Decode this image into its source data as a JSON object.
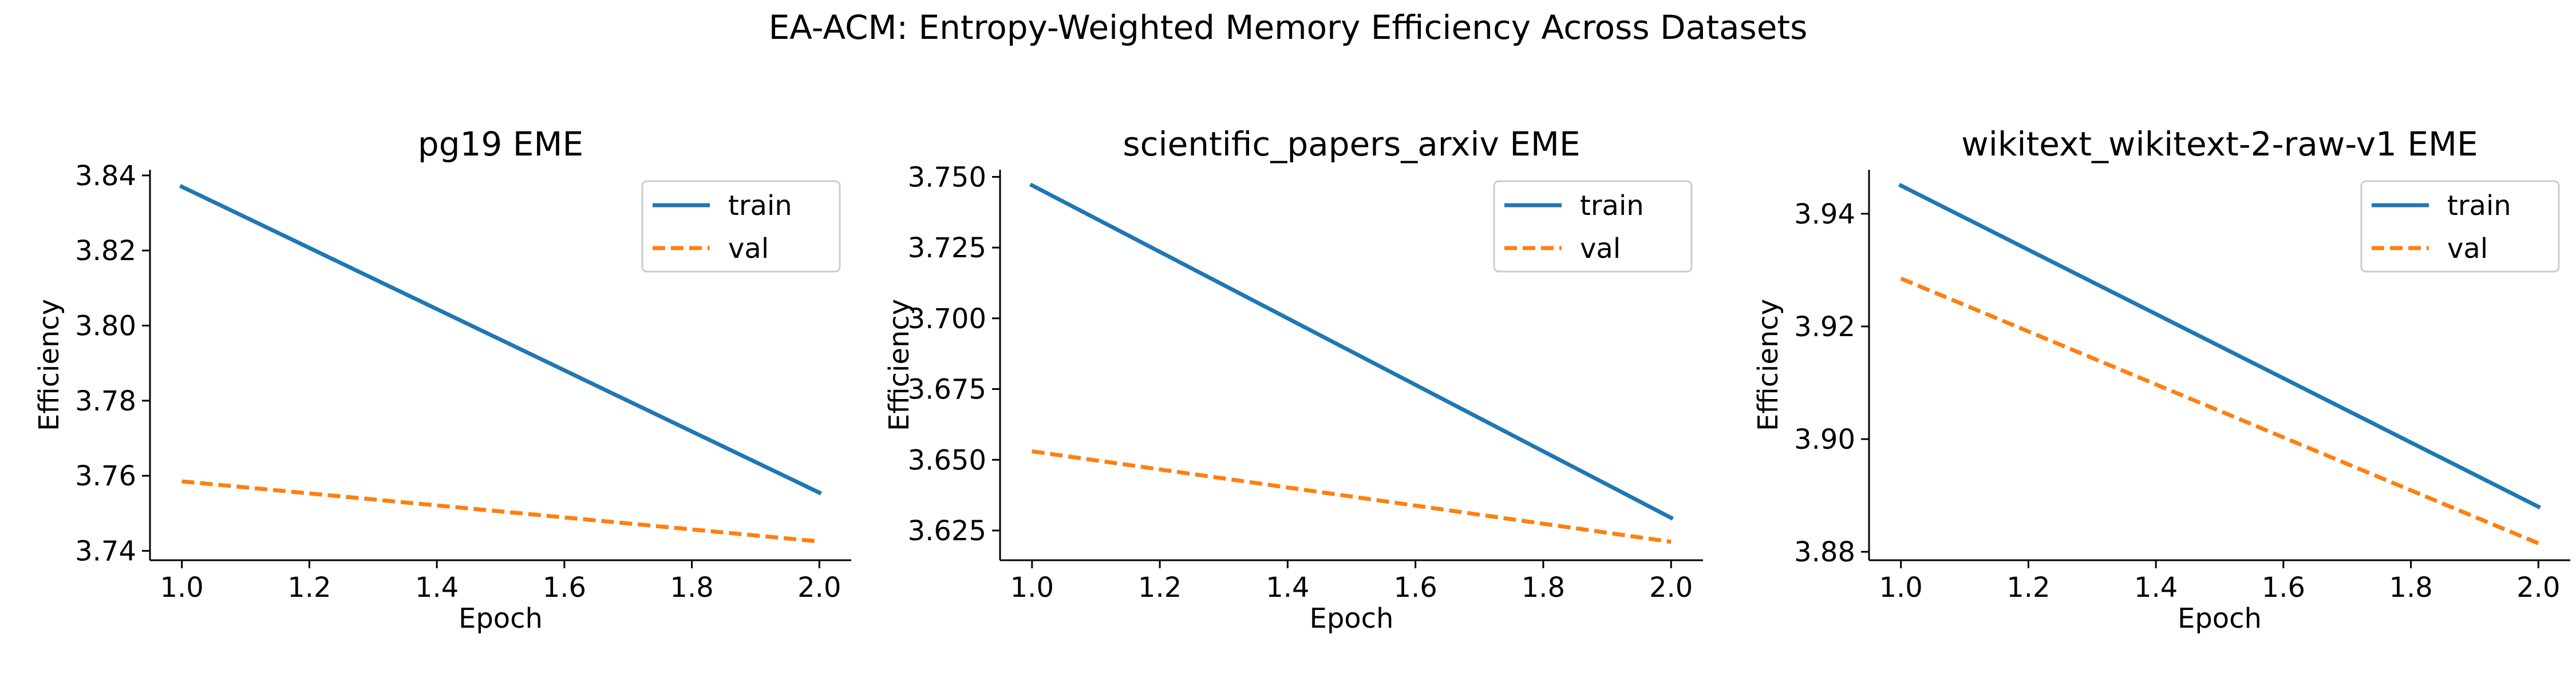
{
  "figure": {
    "suptitle": "EA-ACM: Entropy-Weighted Memory Efficiency Across Datasets"
  },
  "chart_data": [
    {
      "type": "line",
      "title": "pg19 EME",
      "xlabel": "Epoch",
      "ylabel": "Efficiency",
      "xlim": [
        0.95,
        2.05
      ],
      "ylim": [
        3.7375,
        3.8415
      ],
      "xticks": [
        "1.0",
        "1.2",
        "1.4",
        "1.6",
        "1.8",
        "2.0"
      ],
      "yticks": [
        "3.74",
        "3.76",
        "3.78",
        "3.80",
        "3.82",
        "3.84"
      ],
      "grid": false,
      "legend": "upper-right",
      "series": [
        {
          "name": "train",
          "x": [
            1.0,
            2.0
          ],
          "y": [
            3.837,
            3.7555
          ],
          "color": "#1f77b4",
          "style": "solid"
        },
        {
          "name": "val",
          "x": [
            1.0,
            2.0
          ],
          "y": [
            3.7585,
            3.7425
          ],
          "color": "#ff7f0e",
          "style": "dashed"
        }
      ]
    },
    {
      "type": "line",
      "title": "scientific_papers_arxiv EME",
      "xlabel": "Epoch",
      "ylabel": "Efficiency",
      "xlim": [
        0.95,
        2.05
      ],
      "ylim": [
        3.6145,
        3.7525
      ],
      "xticks": [
        "1.0",
        "1.2",
        "1.4",
        "1.6",
        "1.8",
        "2.0"
      ],
      "yticks": [
        "3.625",
        "3.650",
        "3.675",
        "3.700",
        "3.725",
        "3.750"
      ],
      "grid": false,
      "legend": "upper-right",
      "series": [
        {
          "name": "train",
          "x": [
            1.0,
            2.0
          ],
          "y": [
            3.747,
            3.6295
          ],
          "color": "#1f77b4",
          "style": "solid"
        },
        {
          "name": "val",
          "x": [
            1.0,
            2.0
          ],
          "y": [
            3.653,
            3.621
          ],
          "color": "#ff7f0e",
          "style": "dashed"
        }
      ]
    },
    {
      "type": "line",
      "title": "wikitext_wikitext-2-raw-v1 EME",
      "xlabel": "Epoch",
      "ylabel": "Efficiency",
      "xlim": [
        0.95,
        2.05
      ],
      "ylim": [
        3.8785,
        3.9478
      ],
      "xticks": [
        "1.0",
        "1.2",
        "1.4",
        "1.6",
        "1.8",
        "2.0"
      ],
      "yticks": [
        "3.88",
        "3.90",
        "3.92",
        "3.94"
      ],
      "grid": false,
      "legend": "upper-right",
      "series": [
        {
          "name": "train",
          "x": [
            1.0,
            2.0
          ],
          "y": [
            3.945,
            3.888
          ],
          "color": "#1f77b4",
          "style": "solid"
        },
        {
          "name": "val",
          "x": [
            1.0,
            2.0
          ],
          "y": [
            3.9285,
            3.8815
          ],
          "color": "#ff7f0e",
          "style": "dashed"
        }
      ]
    }
  ]
}
